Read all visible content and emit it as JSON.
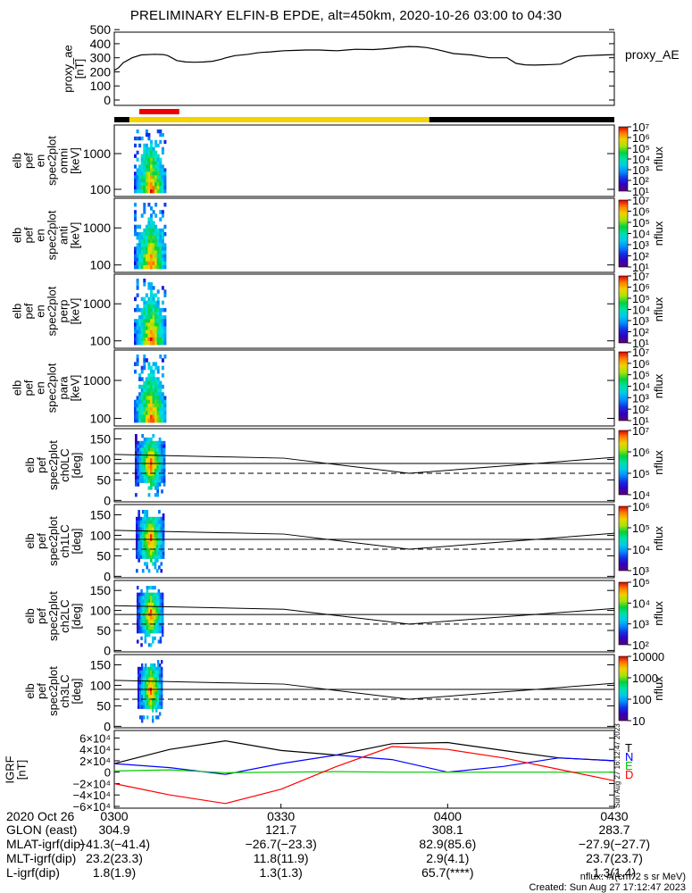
{
  "title": "PRELIMINARY ELFIN-B EPDE, alt=450km, 2020-10-26 03:00 to 04:30",
  "ae_panel": {
    "ylabel": "proxy_ae\n[nT]",
    "right_label": "proxy_AE",
    "yticks": [
      "500",
      "400",
      "300",
      "200",
      "100",
      "0"
    ],
    "ylim": [
      0,
      520
    ],
    "series": {
      "x": [
        0,
        5,
        10,
        20,
        30,
        45,
        55,
        60,
        70,
        80,
        90,
        100,
        110,
        120,
        125,
        135,
        150,
        160,
        165,
        175,
        180,
        190,
        200,
        215,
        230,
        240,
        250,
        260,
        270,
        290,
        300,
        310,
        320,
        330,
        340,
        350,
        360,
        380,
        400,
        420,
        440,
        450,
        460,
        470,
        480,
        490,
        500,
        505,
        515,
        520,
        530,
        540,
        550,
        560
      ],
      "y": [
        210,
        230,
        265,
        300,
        320,
        325,
        323,
        315,
        280,
        270,
        268,
        270,
        275,
        290,
        300,
        315,
        325,
        335,
        338,
        342,
        345,
        350,
        352,
        355,
        355,
        352,
        350,
        355,
        360,
        358,
        362,
        368,
        375,
        380,
        378,
        372,
        360,
        330,
        320,
        300,
        300,
        260,
        250,
        248,
        250,
        252,
        255,
        270,
        300,
        310,
        315,
        318,
        320,
        322
      ]
    }
  },
  "bars": {
    "red": [
      0.05,
      0.13
    ],
    "yellow": [
      0.03,
      0.63
    ],
    "black_right": [
      0.63,
      1.0
    ]
  },
  "spec_panels": [
    {
      "ylabel": "elb\npef\nen\nspec2plot\nomni\n[keV]",
      "yticks": [
        "1000",
        "100"
      ],
      "cbar": "nflux",
      "cbar_ticks": [
        "10⁷",
        "10⁶",
        "10⁵",
        "10⁴",
        "10³",
        "10²",
        "10¹"
      ]
    },
    {
      "ylabel": "elb\npef\nen\nspec2plot\nanti\n[keV]",
      "yticks": [
        "1000",
        "100"
      ],
      "cbar": "nflux",
      "cbar_ticks": [
        "10⁷",
        "10⁶",
        "10⁵",
        "10⁴",
        "10³",
        "10²",
        "10¹"
      ]
    },
    {
      "ylabel": "elb\npef\nen\nspec2plot\nperp\n[keV]",
      "yticks": [
        "1000",
        "100"
      ],
      "cbar": "nflux",
      "cbar_ticks": [
        "10⁷",
        "10⁶",
        "10⁵",
        "10⁴",
        "10³",
        "10²",
        "10¹"
      ]
    },
    {
      "ylabel": "elb\npef\nen\nspec2plot\npara\n[keV]",
      "yticks": [
        "1000",
        "100"
      ],
      "cbar": "nflux",
      "cbar_ticks": [
        "10⁷",
        "10⁶",
        "10⁵",
        "10⁴",
        "10³",
        "10²",
        "10¹"
      ]
    }
  ],
  "pa_panels": [
    {
      "ylabel": "elb\npef\nspec2plot\nch0LC\n[deg]",
      "yticks": [
        "150",
        "100",
        "50",
        "0"
      ],
      "cbar": "nflux",
      "cbar_ticks": [
        "10⁷",
        "10⁶",
        "10⁵",
        "10⁴"
      ]
    },
    {
      "ylabel": "elb\npef\nspec2plot\nch1LC\n[deg]",
      "yticks": [
        "150",
        "100",
        "50",
        "0"
      ],
      "cbar": "nflux",
      "cbar_ticks": [
        "10⁶",
        "10⁵",
        "10⁴",
        "10³"
      ]
    },
    {
      "ylabel": "elb\npef\nspec2plot\nch2LC\n[deg]",
      "yticks": [
        "150",
        "100",
        "50",
        "0"
      ],
      "cbar": "nflux",
      "cbar_ticks": [
        "10⁵",
        "10⁴",
        "10³",
        "10²"
      ]
    },
    {
      "ylabel": "elb\npef\nspec2plot\nch3LC\n[deg]",
      "yticks": [
        "150",
        "100",
        "50",
        "0"
      ],
      "cbar": "nflux",
      "cbar_ticks": [
        "10000",
        "1000",
        "100",
        "10"
      ]
    }
  ],
  "igrf_panel": {
    "ylabel": "IGRF\n[nT]",
    "yticks": [
      "6×10⁴",
      "4×10⁴",
      "2×10⁴",
      "0",
      "−2×10⁴",
      "−4×10⁴",
      "−6×10⁴"
    ],
    "legend": [
      {
        "label": "T",
        "color": "#000000"
      },
      {
        "label": "N",
        "color": "#0000ff"
      },
      {
        "label": "E",
        "color": "#00cc00"
      },
      {
        "label": "D",
        "color": "#ff0000"
      }
    ],
    "side_note": "Sun Aug 27 16:12:47 2023"
  },
  "x_axis": {
    "header": [
      "2020 Oct 26",
      "0300",
      "0330",
      "0400",
      "0430"
    ],
    "rows": [
      {
        "label": "GLON (east)",
        "vals": [
          "304.9",
          "121.7",
          "308.1",
          "283.7"
        ]
      },
      {
        "label": "MLAT-igrf(dip)",
        "vals": [
          "−41.3(−41.4)",
          "−26.7(−23.3)",
          "82.9(85.6)",
          "−27.9(−27.7)"
        ]
      },
      {
        "label": "MLT-igrf(dip)",
        "vals": [
          "23.2(23.3)",
          "11.8(11.9)",
          "2.9(4.1)",
          "23.7(23.7)"
        ]
      },
      {
        "label": "L-igrf(dip)",
        "vals": [
          "1.8(1.9)",
          "1.3(1.3)",
          "65.7(****)",
          "1.3(1.4)"
        ]
      }
    ]
  },
  "footer": {
    "units": "nflux: #/(cm^2 s sr MeV)",
    "created": "Created: Sun Aug 27 17:12:47 2023"
  },
  "chart_data": {
    "type": "line",
    "title": "PRELIMINARY ELFIN-B EPDE, alt=450km, 2020-10-26 03:00 to 04:30",
    "x_range": [
      "03:00",
      "04:30"
    ],
    "series": [
      {
        "name": "proxy_AE",
        "units": "nT",
        "x_minutes": [
          0,
          10,
          20,
          30,
          40,
          50,
          60,
          70,
          80,
          90
        ],
        "values": [
          210,
          320,
          270,
          320,
          345,
          355,
          375,
          310,
          250,
          320
        ]
      },
      {
        "name": "T",
        "x_minutes": [
          0,
          10,
          20,
          30,
          40,
          50,
          60,
          70,
          80,
          90
        ],
        "values": [
          15000,
          40000,
          55000,
          38000,
          30000,
          50000,
          52000,
          38000,
          25000,
          20000
        ]
      },
      {
        "name": "N",
        "x_minutes": [
          0,
          10,
          20,
          30,
          40,
          50,
          60,
          70,
          80,
          90
        ],
        "values": [
          15000,
          8000,
          -4000,
          15000,
          30000,
          22000,
          0,
          10000,
          25000,
          20000
        ]
      },
      {
        "name": "E",
        "x_minutes": [
          0,
          10,
          20,
          30,
          40,
          50,
          60,
          70,
          80,
          90
        ],
        "values": [
          2000,
          4000,
          -1000,
          0,
          1000,
          0,
          0,
          0,
          0,
          0
        ]
      },
      {
        "name": "D",
        "x_minutes": [
          0,
          10,
          20,
          30,
          40,
          50,
          60,
          70,
          80,
          90
        ],
        "values": [
          -20000,
          -40000,
          -55000,
          -30000,
          10000,
          45000,
          40000,
          25000,
          5000,
          -15000
        ]
      }
    ]
  }
}
